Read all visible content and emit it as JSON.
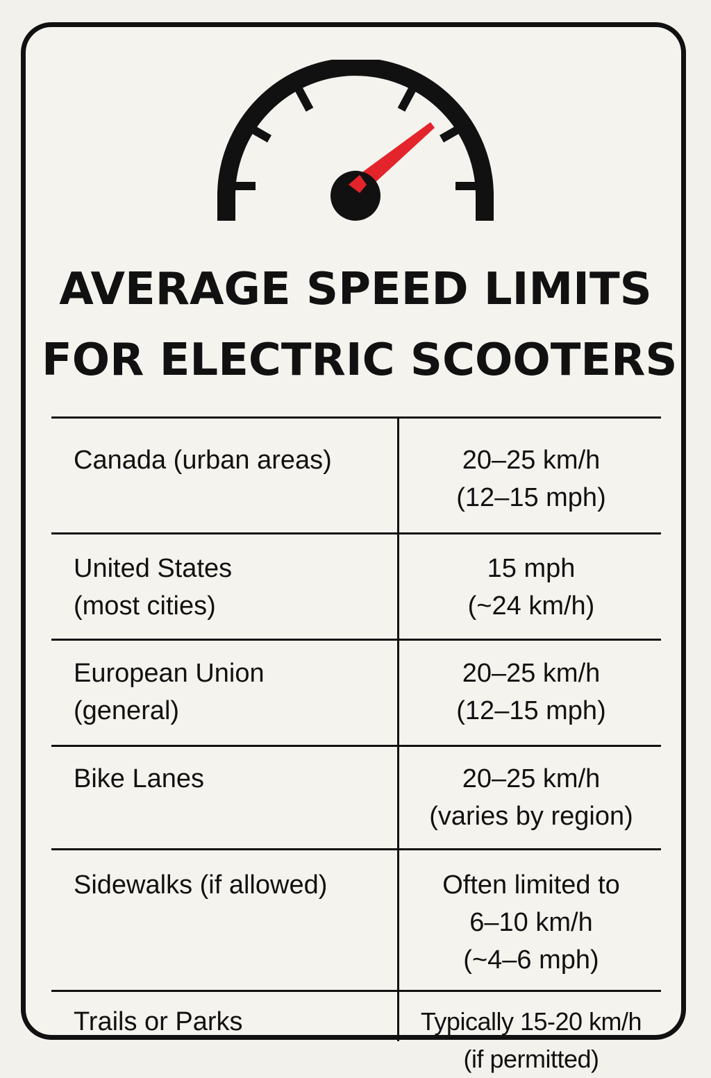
{
  "title": {
    "line1": "AVERAGE SPEED LIMITS",
    "line2": "FOR ELECTRIC SCOOTERS"
  },
  "icon": "speedometer-icon",
  "colors": {
    "background": "#f3f1ec",
    "ink": "#111111",
    "needle": "#e3242b"
  },
  "rows": [
    {
      "label": [
        "Canada (urban areas)"
      ],
      "limit": [
        "20–25 km/h",
        "(12–15 mph)"
      ]
    },
    {
      "label": [
        "United States",
        "(most cities)"
      ],
      "limit": [
        "15 mph",
        "(~24 km/h)"
      ]
    },
    {
      "label": [
        "European Union",
        "(general)"
      ],
      "limit": [
        "20–25 km/h",
        "(12–15 mph)"
      ]
    },
    {
      "label": [
        "Bike Lanes"
      ],
      "limit": [
        "20–25 km/h",
        "(varies by region)"
      ]
    },
    {
      "label": [
        "Sidewalks (if allowed)"
      ],
      "limit": [
        "Often limited to",
        "6–10 km/h",
        "(~4–6 mph)"
      ]
    },
    {
      "label": [
        "Trails or Parks"
      ],
      "limit": [
        "Typically 15-20 km/h",
        "(if permitted)"
      ]
    }
  ]
}
